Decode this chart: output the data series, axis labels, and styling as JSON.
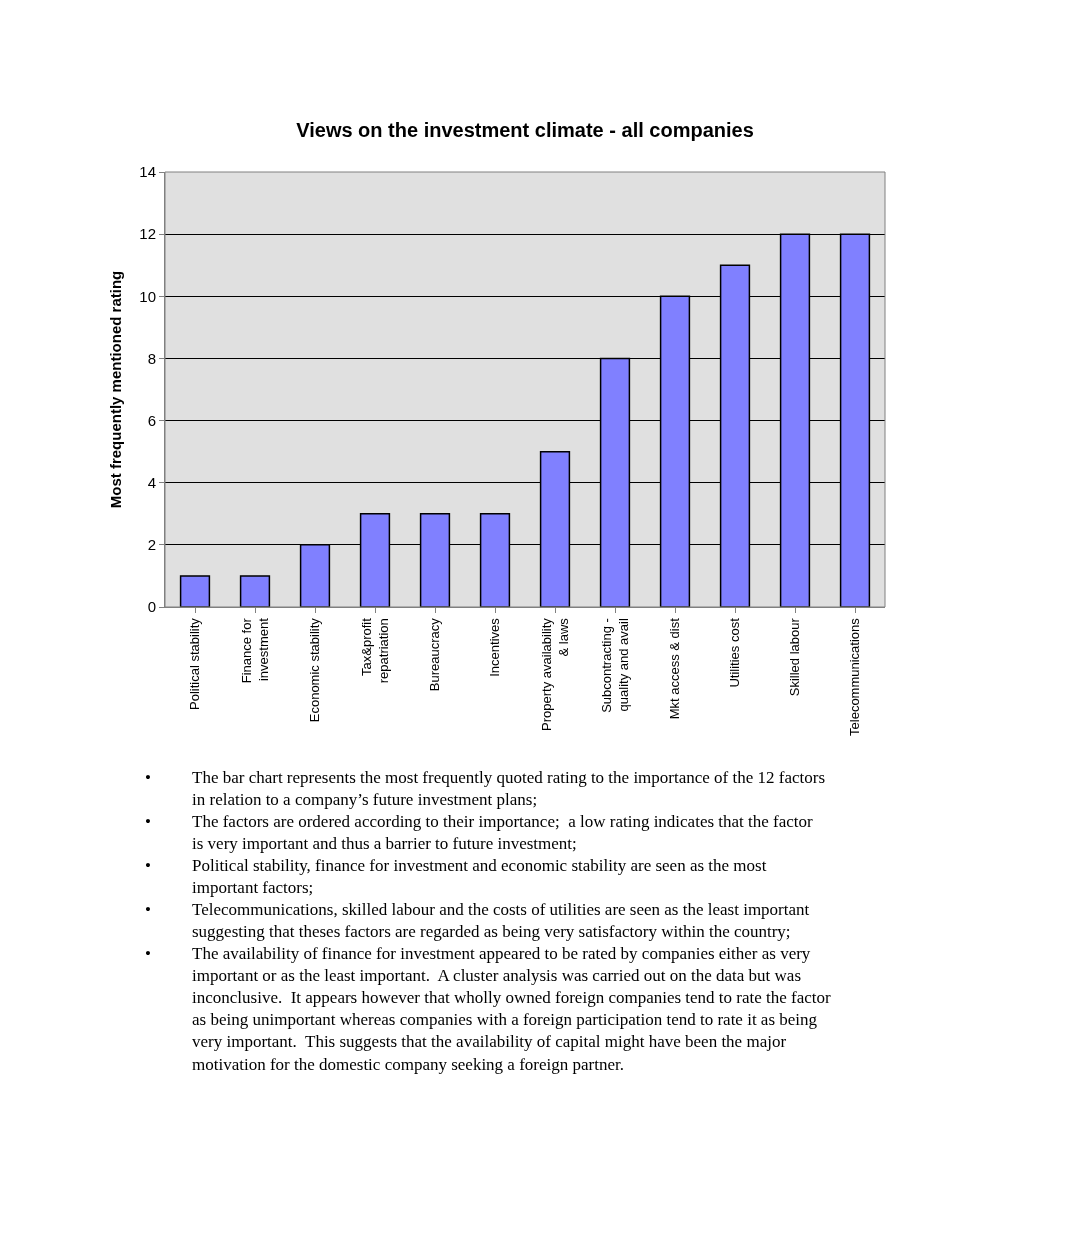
{
  "chart_data": {
    "type": "bar",
    "title": "Views on the investment climate - all companies",
    "ylabel": "Most frequently mentioned rating",
    "categories": [
      "Political stability",
      "Finance for\ninvestment",
      "Economic stability",
      "Tax&profit\nrepatriation",
      "Bureaucracy",
      "Incentives",
      "Property availability\n& laws",
      "Subcontracting -\nquality and avail",
      "Mkt access & dist",
      "Utilities cost",
      "Skilled labour",
      "Telecommunications"
    ],
    "values": [
      1,
      1,
      2,
      3,
      3,
      3,
      5,
      8,
      10,
      11,
      12,
      12
    ],
    "color": "#8080ff",
    "ylim": [
      0,
      14
    ],
    "yticks": [
      0,
      2,
      4,
      6,
      8,
      10,
      12,
      14
    ],
    "grid": "y",
    "legend": false,
    "annotations": [
      "• The bar chart represents the most frequently quoted rating to the importance of the 12 factors in relation to a company’s future investment plans;",
      "• The factors are ordered according to their importance;  a low rating indicates that the factor is very important and thus a barrier to future investment;",
      "• Political stability, finance for investment and economic stability are seen as the most important factors;",
      "• Telecommunications, skilled labour and the costs of utilities are seen as the least important suggesting that theses factors are regarded as being very satisfactory within the country;",
      "• The availability of finance for investment appeared to be rated by companies either as very important or as the least important.  A cluster analysis was carried out on the data but was inconclusive.  It appears however that wholly owned foreign companies tend to rate the factor as being unimportant whereas companies with a foreign participation tend to rate it as being very important.  This suggests that the availability of capital might have been the major motivation for the domestic company seeking a foreign partner."
    ]
  }
}
